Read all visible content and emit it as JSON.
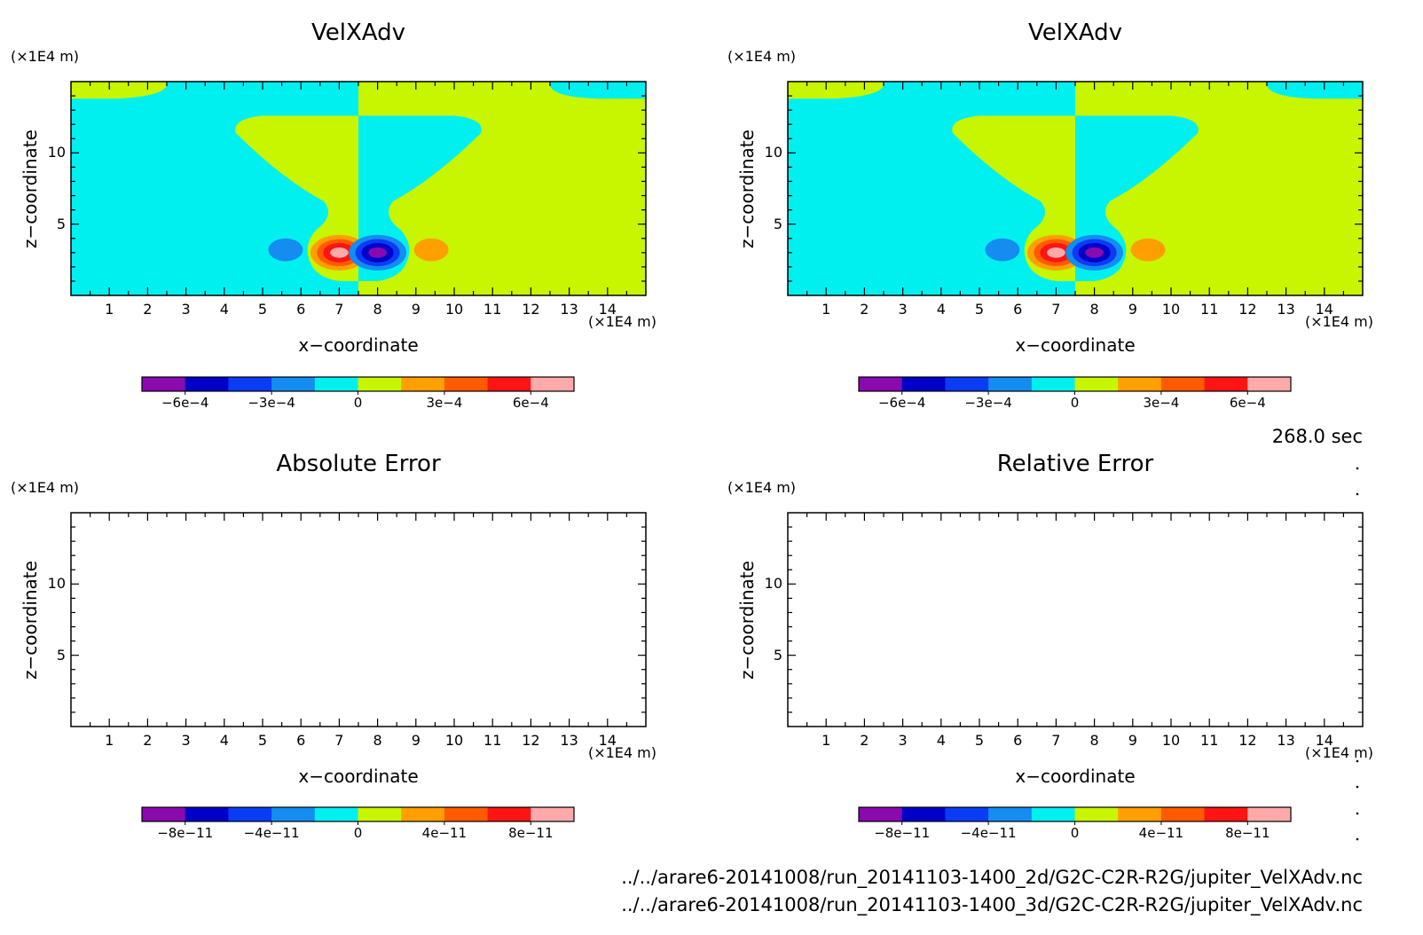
{
  "time_label": "268.0 sec",
  "files": [
    "../../arare6-20141008/run_20141103-1400_2d/G2C-C2R-R2G/jupiter_VelXAdv.nc",
    "../../arare6-20141008/run_20141103-1400_3d/G2C-C2R-R2G/jupiter_VelXAdv.nc"
  ],
  "colors": {
    "levels": [
      "#8a0aae",
      "#0000c8",
      "#0a3cf5",
      "#148cf0",
      "#00f0f0",
      "#c8f500",
      "#ff9f00",
      "#ff5a00",
      "#ff1414",
      "#ffaaaa"
    ],
    "background_negative": "#00f0f0",
    "background_positive": "#c8f500"
  },
  "chart_data": [
    {
      "type": "heatmap",
      "title": "VelXAdv",
      "xlabel": "x−coordinate",
      "ylabel": "z−coordinate",
      "x_unit": "(×1E4 m)",
      "y_unit": "(×1E4 m)",
      "xlim": [
        0,
        15
      ],
      "ylim": [
        0,
        15
      ],
      "x_ticks": [
        1,
        2,
        3,
        4,
        5,
        6,
        7,
        8,
        9,
        10,
        11,
        12,
        13,
        14
      ],
      "y_ticks": [
        5,
        10
      ],
      "colorbar": {
        "range": [
          -0.00075,
          0.00075
        ],
        "tick_values": [
          -0.0006,
          -0.0003,
          0,
          0.0003,
          0.0006
        ],
        "tick_labels": [
          "−6e−4",
          "−3e−4",
          "0",
          "3e−4",
          "6e−4"
        ]
      },
      "has_field": true
    },
    {
      "type": "heatmap",
      "title": "VelXAdv",
      "xlabel": "x−coordinate",
      "ylabel": "z−coordinate",
      "x_unit": "(×1E4 m)",
      "y_unit": "(×1E4 m)",
      "xlim": [
        0,
        15
      ],
      "ylim": [
        0,
        15
      ],
      "x_ticks": [
        1,
        2,
        3,
        4,
        5,
        6,
        7,
        8,
        9,
        10,
        11,
        12,
        13,
        14
      ],
      "y_ticks": [
        5,
        10
      ],
      "colorbar": {
        "range": [
          -0.00075,
          0.00075
        ],
        "tick_values": [
          -0.0006,
          -0.0003,
          0,
          0.0003,
          0.0006
        ],
        "tick_labels": [
          "−6e−4",
          "−3e−4",
          "0",
          "3e−4",
          "6e−4"
        ]
      },
      "has_field": true
    },
    {
      "type": "heatmap",
      "title": "Absolute Error",
      "xlabel": "x−coordinate",
      "ylabel": "z−coordinate",
      "x_unit": "(×1E4 m)",
      "y_unit": "(×1E4 m)",
      "xlim": [
        0,
        15
      ],
      "ylim": [
        0,
        15
      ],
      "x_ticks": [
        1,
        2,
        3,
        4,
        5,
        6,
        7,
        8,
        9,
        10,
        11,
        12,
        13,
        14
      ],
      "y_ticks": [
        5,
        10
      ],
      "colorbar": {
        "range": [
          -1e-10,
          1e-10
        ],
        "tick_values": [
          -8e-11,
          -4e-11,
          0,
          4e-11,
          8e-11
        ],
        "tick_labels": [
          "−8e−11",
          "−4e−11",
          "0",
          "4e−11",
          "8e−11"
        ]
      },
      "has_field": false
    },
    {
      "type": "heatmap",
      "title": "Relative Error",
      "xlabel": "x−coordinate",
      "ylabel": "z−coordinate",
      "x_unit": "(×1E4 m)",
      "y_unit": "(×1E4 m)",
      "xlim": [
        0,
        15
      ],
      "ylim": [
        0,
        15
      ],
      "x_ticks": [
        1,
        2,
        3,
        4,
        5,
        6,
        7,
        8,
        9,
        10,
        11,
        12,
        13,
        14
      ],
      "y_ticks": [
        5,
        10
      ],
      "colorbar": {
        "range": [
          -1e-10,
          1e-10
        ],
        "tick_values": [
          -8e-11,
          -4e-11,
          0,
          4e-11,
          8e-11
        ],
        "tick_labels": [
          "−8e−11",
          "−4e−11",
          "0",
          "4e−11",
          "8e−11"
        ]
      },
      "has_field": false
    }
  ]
}
